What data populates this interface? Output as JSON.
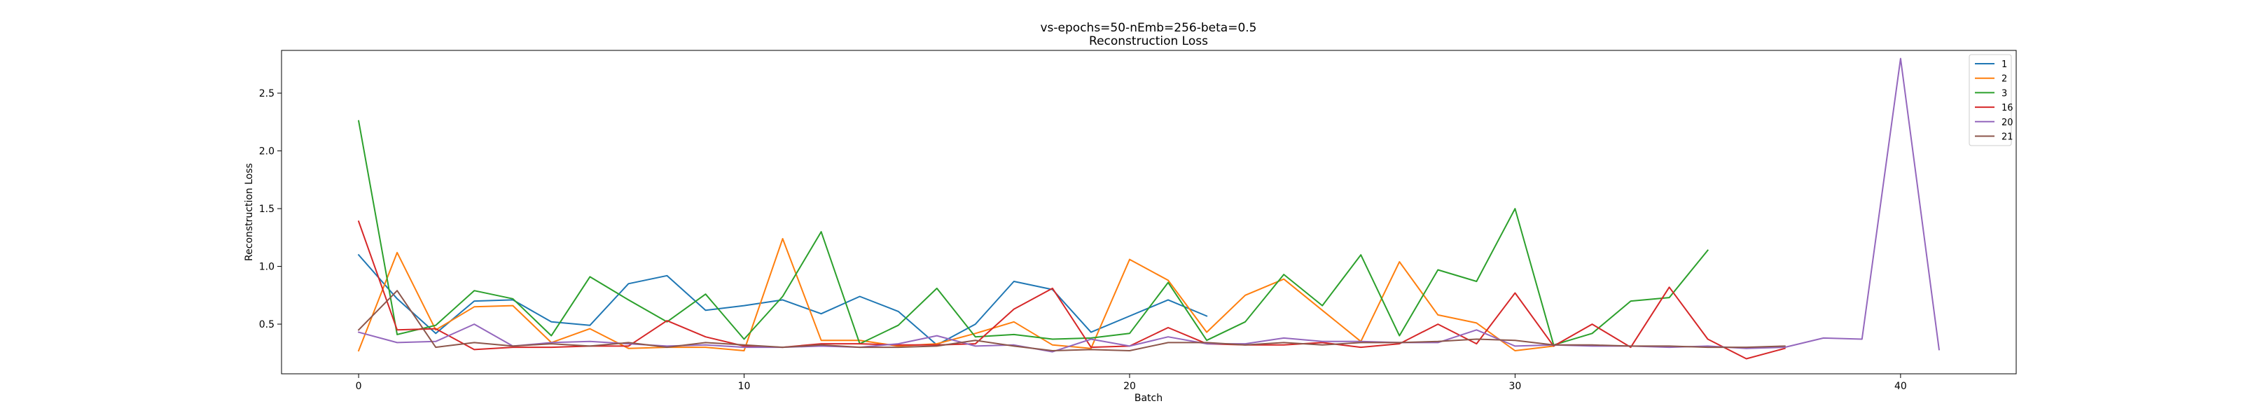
{
  "chart_data": {
    "type": "line",
    "title": "vs-epochs=50-nEmb=256-beta=0.5",
    "subtitle": "Reconstruction Loss",
    "xlabel": "Batch",
    "ylabel": "Reconstruction Loss",
    "xlim": [
      -2,
      43
    ],
    "ylim": [
      0.07,
      2.87
    ],
    "xticks": [
      0,
      10,
      20,
      30,
      40
    ],
    "yticks": [
      0.5,
      1.0,
      1.5,
      2.0,
      2.5
    ],
    "ytick_labels": [
      "0.5",
      "1.0",
      "1.5",
      "2.0",
      "2.5"
    ],
    "grid": false,
    "legend_position": "top-right",
    "series": [
      {
        "name": "1",
        "color": "#1f77b4",
        "x": [
          0,
          1,
          2,
          3,
          4,
          5,
          6,
          7,
          8,
          9,
          10,
          11,
          12,
          13,
          14,
          15,
          16,
          17,
          18,
          19,
          20,
          21,
          22
        ],
        "y": [
          1.1,
          0.72,
          0.42,
          0.7,
          0.71,
          0.52,
          0.49,
          0.85,
          0.92,
          0.62,
          0.66,
          0.71,
          0.59,
          0.74,
          0.61,
          0.32,
          0.5,
          0.87,
          0.8,
          0.43,
          0.57,
          0.71,
          0.57
        ]
      },
      {
        "name": "2",
        "color": "#ff7f0e",
        "x": [
          0,
          1,
          2,
          3,
          4,
          5,
          6,
          7,
          8,
          9,
          10,
          11,
          12,
          13,
          14,
          15,
          16,
          17,
          18,
          19,
          20,
          21,
          22,
          23,
          24,
          25,
          26,
          27,
          28,
          29,
          30,
          31
        ],
        "y": [
          0.27,
          1.12,
          0.45,
          0.65,
          0.66,
          0.34,
          0.46,
          0.29,
          0.3,
          0.3,
          0.27,
          1.24,
          0.36,
          0.36,
          0.31,
          0.33,
          0.42,
          0.52,
          0.32,
          0.29,
          1.06,
          0.88,
          0.43,
          0.75,
          0.89,
          0.62,
          0.35,
          1.04,
          0.58,
          0.51,
          0.27,
          0.31
        ]
      },
      {
        "name": "3",
        "color": "#2ca02c",
        "x": [
          0,
          1,
          2,
          3,
          4,
          5,
          6,
          7,
          8,
          9,
          10,
          11,
          12,
          13,
          14,
          15,
          16,
          17,
          18,
          19,
          20,
          21,
          22,
          23,
          24,
          25,
          26,
          27,
          28,
          29,
          30,
          31,
          32,
          33,
          34,
          35
        ],
        "y": [
          2.26,
          0.41,
          0.49,
          0.79,
          0.72,
          0.4,
          0.91,
          0.71,
          0.52,
          0.76,
          0.37,
          0.74,
          1.3,
          0.33,
          0.49,
          0.81,
          0.39,
          0.41,
          0.37,
          0.38,
          0.42,
          0.86,
          0.36,
          0.52,
          0.93,
          0.66,
          1.1,
          0.4,
          0.97,
          0.87,
          1.5,
          0.32,
          0.42,
          0.7,
          0.73,
          1.14
        ]
      },
      {
        "name": "16",
        "color": "#d62728",
        "x": [
          0,
          1,
          2,
          3,
          4,
          5,
          6,
          7,
          8,
          9,
          10,
          11,
          12,
          13,
          14,
          15,
          16,
          17,
          18,
          19,
          20,
          21,
          22,
          23,
          24,
          25,
          26,
          27,
          28,
          29,
          30,
          31,
          32,
          33,
          34,
          35,
          36,
          37
        ],
        "y": [
          1.39,
          0.45,
          0.46,
          0.28,
          0.3,
          0.3,
          0.31,
          0.31,
          0.53,
          0.39,
          0.31,
          0.3,
          0.33,
          0.33,
          0.32,
          0.32,
          0.33,
          0.63,
          0.81,
          0.3,
          0.31,
          0.47,
          0.33,
          0.32,
          0.32,
          0.34,
          0.3,
          0.33,
          0.5,
          0.33,
          0.77,
          0.31,
          0.5,
          0.3,
          0.82,
          0.37,
          0.2,
          0.29
        ]
      },
      {
        "name": "20",
        "color": "#9467bd",
        "x": [
          0,
          1,
          2,
          3,
          4,
          5,
          6,
          7,
          8,
          9,
          10,
          11,
          12,
          13,
          14,
          15,
          16,
          17,
          18,
          19,
          20,
          21,
          22,
          23,
          24,
          25,
          26,
          27,
          28,
          29,
          30,
          31,
          32,
          33,
          34,
          35,
          36,
          37,
          38,
          39,
          40,
          41
        ],
        "y": [
          0.43,
          0.34,
          0.35,
          0.5,
          0.31,
          0.34,
          0.35,
          0.33,
          0.31,
          0.32,
          0.3,
          0.3,
          0.31,
          0.3,
          0.33,
          0.4,
          0.31,
          0.32,
          0.26,
          0.37,
          0.31,
          0.39,
          0.33,
          0.33,
          0.38,
          0.35,
          0.35,
          0.34,
          0.34,
          0.45,
          0.31,
          0.32,
          0.31,
          0.31,
          0.3,
          0.31,
          0.29,
          0.3,
          0.38,
          0.37,
          2.8,
          0.28
        ]
      },
      {
        "name": "21",
        "color": "#8c564b",
        "x": [
          0,
          1,
          2,
          3,
          4,
          5,
          6,
          7,
          8,
          9,
          10,
          11,
          12,
          13,
          14,
          15,
          16,
          17,
          18,
          19,
          20,
          21,
          22,
          23,
          24,
          25,
          26,
          27,
          28,
          29,
          30,
          31,
          32,
          33,
          34,
          35,
          36,
          37
        ],
        "y": [
          0.45,
          0.79,
          0.3,
          0.34,
          0.31,
          0.33,
          0.31,
          0.34,
          0.3,
          0.34,
          0.32,
          0.3,
          0.32,
          0.3,
          0.3,
          0.31,
          0.36,
          0.31,
          0.27,
          0.28,
          0.27,
          0.34,
          0.34,
          0.32,
          0.34,
          0.32,
          0.34,
          0.34,
          0.35,
          0.37,
          0.36,
          0.32,
          0.32,
          0.31,
          0.31,
          0.3,
          0.3,
          0.31
        ]
      }
    ]
  }
}
